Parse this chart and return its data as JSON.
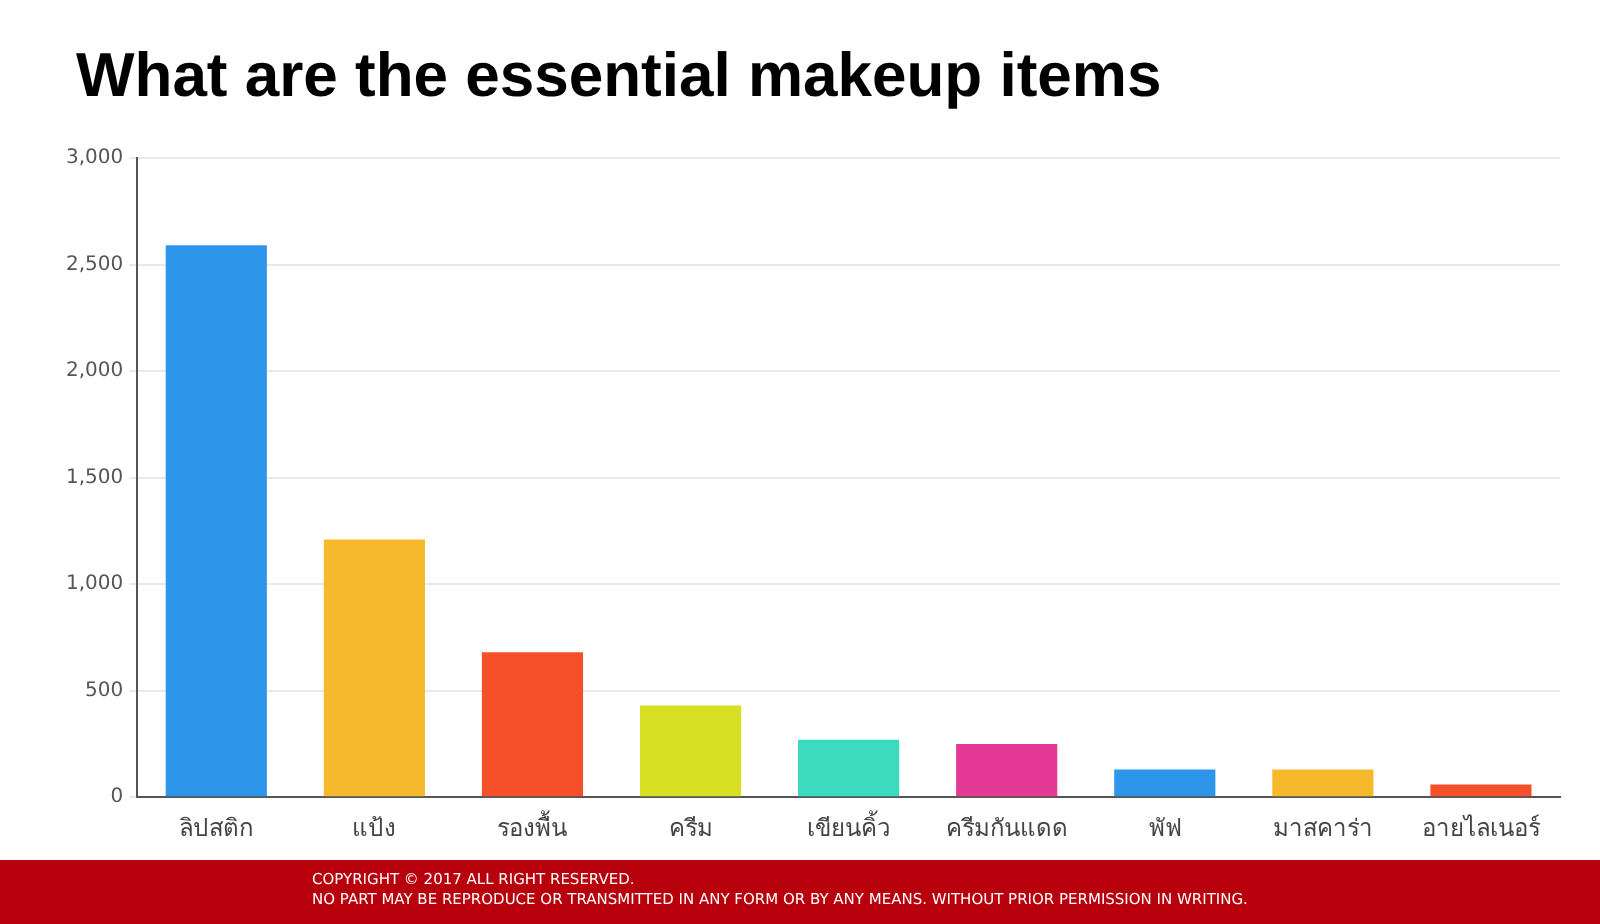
{
  "chart_data": {
    "type": "bar",
    "title": "What are the essential makeup items",
    "categories": [
      "ลิปสติก",
      "แป้ง",
      "รองพื้น",
      "ครีม",
      "เขียนคิ้ว",
      "ครีมกันแดด",
      "พัฟ",
      "มาสคาร่า",
      "อายไลเนอร์"
    ],
    "values": [
      2590,
      1210,
      680,
      430,
      270,
      250,
      130,
      130,
      60
    ],
    "colors": [
      "#2d96ea",
      "#f6b92b",
      "#f5502a",
      "#d6df21",
      "#3cdbc0",
      "#e43a96",
      "#2d96ea",
      "#f6b92b",
      "#f5502a"
    ],
    "ylim": [
      0,
      3000
    ],
    "yticks": [
      {
        "value": 0,
        "label": "0"
      },
      {
        "value": 500,
        "label": "500"
      },
      {
        "value": 1000,
        "label": "1,000"
      },
      {
        "value": 1500,
        "label": "1,500"
      },
      {
        "value": 2000,
        "label": "2,000"
      },
      {
        "value": 2500,
        "label": "2,500"
      },
      {
        "value": 3000,
        "label": "3,000"
      }
    ],
    "grid": "y",
    "legend": false,
    "annotations": [
      "COPYRIGHT © 2017 ALL RIGHT RESERVED.",
      "NO PART MAY BE REPRODUCE OR TRANSMITTED IN ANY FORM OR BY ANY MEANS. WITHOUT PRIOR PERMISSION IN WRITING."
    ]
  }
}
